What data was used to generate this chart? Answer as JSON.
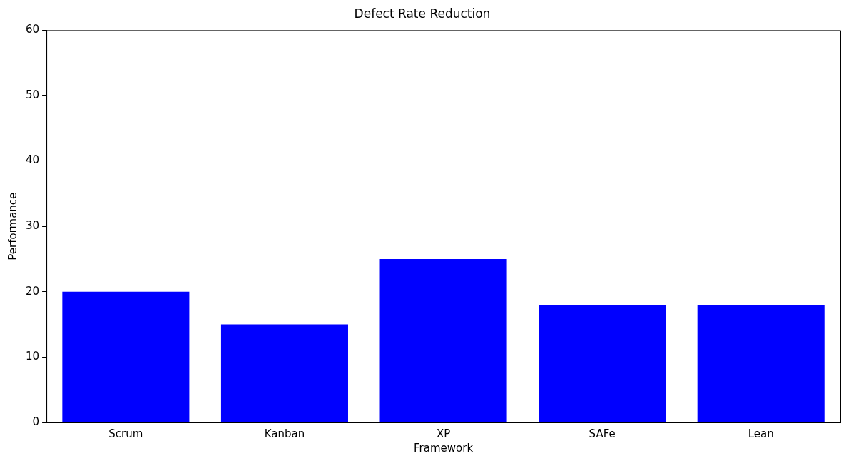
{
  "chart_data": {
    "type": "bar",
    "title": "Defect Rate Reduction",
    "xlabel": "Framework",
    "ylabel": "Performance",
    "categories": [
      "Scrum",
      "Kanban",
      "XP",
      "SAFe",
      "Lean"
    ],
    "values": [
      20,
      15,
      25,
      18,
      18
    ],
    "color": "#0000ff",
    "ylim": [
      0,
      60
    ],
    "yticks": [
      0,
      10,
      20,
      30,
      40,
      50,
      60
    ],
    "grid": false,
    "legend": false
  }
}
